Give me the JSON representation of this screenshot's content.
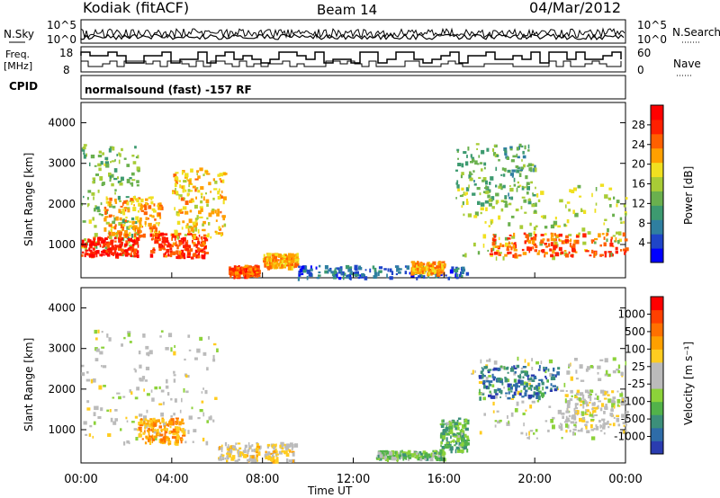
{
  "header": {
    "station": "Kodiak (fitACF)",
    "beam": "Beam 14",
    "date": "04/Mar/2012"
  },
  "noise_panel": {
    "left_label": "N.Sky",
    "right_label": "N.Search",
    "tick_top": "10^5",
    "tick_bottom": "10^0",
    "right_tick_top": "10^5",
    "right_tick_bottom": "10^0"
  },
  "freq_panel": {
    "left_label_line1": "Freq.",
    "left_label_line2": "[MHz]",
    "left_tick_top": "18",
    "left_tick_bottom": "8",
    "right_label": "Nave",
    "right_tick_top": "60",
    "right_tick_bottom": "0"
  },
  "cpid_panel": {
    "label": "CPID",
    "text": "normalsound (fast) -157 RF"
  },
  "x_axis": {
    "label": "Time UT",
    "ticks": [
      "00:00",
      "04:00",
      "08:00",
      "12:00",
      "16:00",
      "20:00",
      "00:00"
    ]
  },
  "power_panel": {
    "ylabel": "Slant Range [km]",
    "yticks": [
      "4000",
      "3000",
      "2000",
      "1000"
    ],
    "colorbar_label": "Power [dB]",
    "colorbar_ticks": [
      "28",
      "24",
      "20",
      "16",
      "12",
      "8",
      "4"
    ],
    "colors": [
      "#0000ff",
      "#1f45c8",
      "#2f7fa0",
      "#3d9a70",
      "#6ab04e",
      "#a8cc36",
      "#f0e020",
      "#ffa000",
      "#ff6000",
      "#ff2000",
      "#ff0000"
    ]
  },
  "velocity_panel": {
    "ylabel": "Slant Range [km]",
    "yticks": [
      "4000",
      "3000",
      "2000",
      "1000"
    ],
    "colorbar_label": "Velocity [m s⁻¹]",
    "colorbar_ticks": [
      "1000",
      "500",
      "100",
      "25",
      "-25",
      "-100",
      "-500",
      "-1000"
    ],
    "colors": [
      "#2a3cb0",
      "#2e6ca8",
      "#3c8f7a",
      "#52b24a",
      "#8cd23a",
      "#bbbbbb",
      "#bbbbbb",
      "#ffcc20",
      "#ffa000",
      "#ff7000",
      "#ff4000",
      "#ff0000"
    ]
  },
  "chart_data": {
    "type": "heatmap",
    "x_range_hours_ut": [
      0,
      24
    ],
    "y_range_km": [
      180,
      4500
    ],
    "panels": [
      {
        "name": "Power",
        "unit": "dB",
        "color_range": [
          0,
          32
        ],
        "regions": [
          {
            "t": [
              0,
              2.5
            ],
            "range_km": [
              700,
              3500
            ],
            "value": 14
          },
          {
            "t": [
              0,
              2.5
            ],
            "range_km": [
              750,
              1200
            ],
            "value": 28
          },
          {
            "t": [
              1,
              3.5
            ],
            "range_km": [
              1200,
              2200
            ],
            "value": 22
          },
          {
            "t": [
              3,
              5.5
            ],
            "range_km": [
              700,
              1300
            ],
            "value": 27
          },
          {
            "t": [
              4,
              6.3
            ],
            "range_km": [
              1200,
              2900
            ],
            "value": 20
          },
          {
            "t": [
              6.5,
              7.8
            ],
            "range_km": [
              250,
              500
            ],
            "value": 26
          },
          {
            "t": [
              8,
              9.5
            ],
            "range_km": [
              450,
              800
            ],
            "value": 22
          },
          {
            "t": [
              9.5,
              17
            ],
            "range_km": [
              200,
              500
            ],
            "value": 6
          },
          {
            "t": [
              14.5,
              16
            ],
            "range_km": [
              300,
              600
            ],
            "value": 22
          },
          {
            "t": [
              16.5,
              24
            ],
            "range_km": [
              700,
              2500
            ],
            "value": 16
          },
          {
            "t": [
              18,
              24
            ],
            "range_km": [
              750,
              1300
            ],
            "value": 25
          },
          {
            "t": [
              16.5,
              20
            ],
            "range_km": [
              2000,
              3500
            ],
            "value": 12
          }
        ]
      },
      {
        "name": "Velocity",
        "unit": "m s⁻¹",
        "color_range": [
          -1000,
          1000
        ],
        "regions": [
          {
            "t": [
              0,
              6
            ],
            "range_km": [
              700,
              3500
            ],
            "value": 0
          },
          {
            "t": [
              2.5,
              4.5
            ],
            "range_km": [
              700,
              1300
            ],
            "value": 400
          },
          {
            "t": [
              6,
              9.5
            ],
            "range_km": [
              250,
              700
            ],
            "value": 150
          },
          {
            "t": [
              13,
              16
            ],
            "range_km": [
              300,
              500
            ],
            "value": -300
          },
          {
            "t": [
              15.8,
              17
            ],
            "range_km": [
              500,
              1300
            ],
            "value": -400
          },
          {
            "t": [
              17,
              24
            ],
            "range_km": [
              800,
              2800
            ],
            "value": 0
          },
          {
            "t": [
              17.5,
              21
            ],
            "range_km": [
              1800,
              2600
            ],
            "value": -700
          },
          {
            "t": [
              21,
              24
            ],
            "range_km": [
              1000,
              2000
            ],
            "value": 0
          }
        ]
      }
    ],
    "freq_MHz": [
      {
        "t": 0,
        "v": 16
      },
      {
        "t": 4,
        "v": 11
      },
      {
        "t": 12,
        "v": 10
      },
      {
        "t": 24,
        "v": 12
      }
    ],
    "nave": [
      {
        "t": 0,
        "v": 20
      },
      {
        "t": 12,
        "v": 15
      },
      {
        "t": 24,
        "v": 20
      }
    ]
  }
}
